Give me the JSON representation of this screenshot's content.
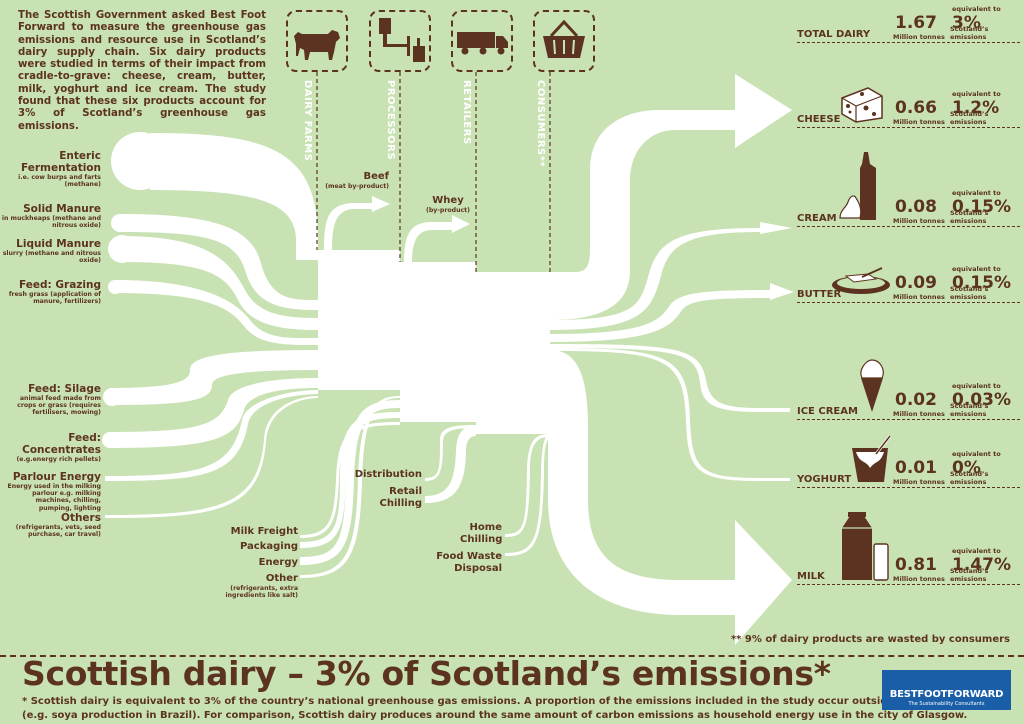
{
  "intro": "The Scottish Government asked Best Foot Forward to measure the greenhouse gas emissions and resource use in Scotland’s dairy supply chain. Six dairy products were studied in terms of their impact from cradle-to-grave: cheese, cream, butter, milk, yoghurt and ice cream. The study found that these six products account for 3% of Scotland’s greenhouse gas emissions.",
  "stages": [
    {
      "label": "DAIRY FARMS",
      "icon": "cow-icon"
    },
    {
      "label": "PROCESSORS",
      "icon": "factory-icon"
    },
    {
      "label": "RETAILERS",
      "icon": "truck-icon"
    },
    {
      "label": "CONSUMERS**",
      "icon": "basket-icon"
    }
  ],
  "sources": [
    {
      "title": "Enteric Fermentation",
      "sub": "i.e. cow burps and farts (methane)"
    },
    {
      "title": "Solid Manure",
      "sub": "in muckheaps (methane and nitrous oxide)"
    },
    {
      "title": "Liquid Manure",
      "sub": "slurry (methane and nitrous oxide)"
    },
    {
      "title": "Feed: Grazing",
      "sub": "fresh grass (application of manure, fertilizers)"
    },
    {
      "title": "Feed: Silage",
      "sub": "animal feed made from crops or grass (requires fertilisers, mowing)"
    },
    {
      "title": "Feed: Concentrates",
      "sub": "(e.g.energy rich pellets)"
    },
    {
      "title": "Parlour Energy",
      "sub": "Energy used in the milking parlour e.g. milking machines, chilling, pumping, lighting"
    },
    {
      "title": "Others",
      "sub": "(refrigerants, vets, seed purchase, car travel)"
    }
  ],
  "byproducts": {
    "beef": {
      "title": "Beef",
      "sub": "(meat by-product)"
    },
    "whey": {
      "title": "Whey",
      "sub": "(by-product)"
    }
  },
  "processor_inputs": {
    "milk_freight": "Milk Freight",
    "packaging": "Packaging",
    "energy": "Energy",
    "other": "Other",
    "other_sub": "(refrigerants, extra ingredients like salt)"
  },
  "retail_inputs": {
    "distribution": "Distribution",
    "retail_chilling": "Retail Chilling"
  },
  "consumer_inputs": {
    "home_chilling": "Home Chilling",
    "food_waste": "Food Waste Disposal"
  },
  "units": {
    "value": "Million tonnes",
    "equiv_top": "equivalent to",
    "equiv_sub": "Scotland’s emissions"
  },
  "products": [
    {
      "name": "TOTAL DAIRY",
      "value": "1.67",
      "pct": "3%",
      "icon": ""
    },
    {
      "name": "CHEESE",
      "value": "0.66",
      "pct": "1.2%",
      "icon": "cheese-icon"
    },
    {
      "name": "CREAM",
      "value": "0.08",
      "pct": "0.15%",
      "icon": "cream-icon"
    },
    {
      "name": "BUTTER",
      "value": "0.09",
      "pct": "0.15%",
      "icon": "butter-icon"
    },
    {
      "name": "ICE CREAM",
      "value": "0.02",
      "pct": "0.03%",
      "icon": "ice-cream-icon"
    },
    {
      "name": "YOGHURT",
      "value": "0.01",
      "pct": "0%",
      "icon": "yoghurt-icon"
    },
    {
      "name": "MILK",
      "value": "0.81",
      "pct": "1.47%",
      "icon": "milk-icon"
    }
  ],
  "footnote": "** 9% of dairy products are wasted by consumers",
  "title": "Scottish dairy – 3% of Scotland’s emissions*",
  "footer_line1": "* Scottish dairy is equivalent to 3% of the country’s national greenhouse gas emissions. A proportion of the emissions included in the study occur outside of Scotland",
  "footer_line2": "(e.g. soya production in Brazil). For comparison, Scottish dairy produces around the same amount of carbon emissions as household energy use in the city of Glasgow.",
  "brand": {
    "name": "BESTFOOTFORWARD",
    "tagline": "The Sustainability Consultants"
  },
  "colors": {
    "background": "#c9e2b3",
    "text": "#5b3320",
    "flow": "#ffffff",
    "brand": "#1a5ea8"
  }
}
